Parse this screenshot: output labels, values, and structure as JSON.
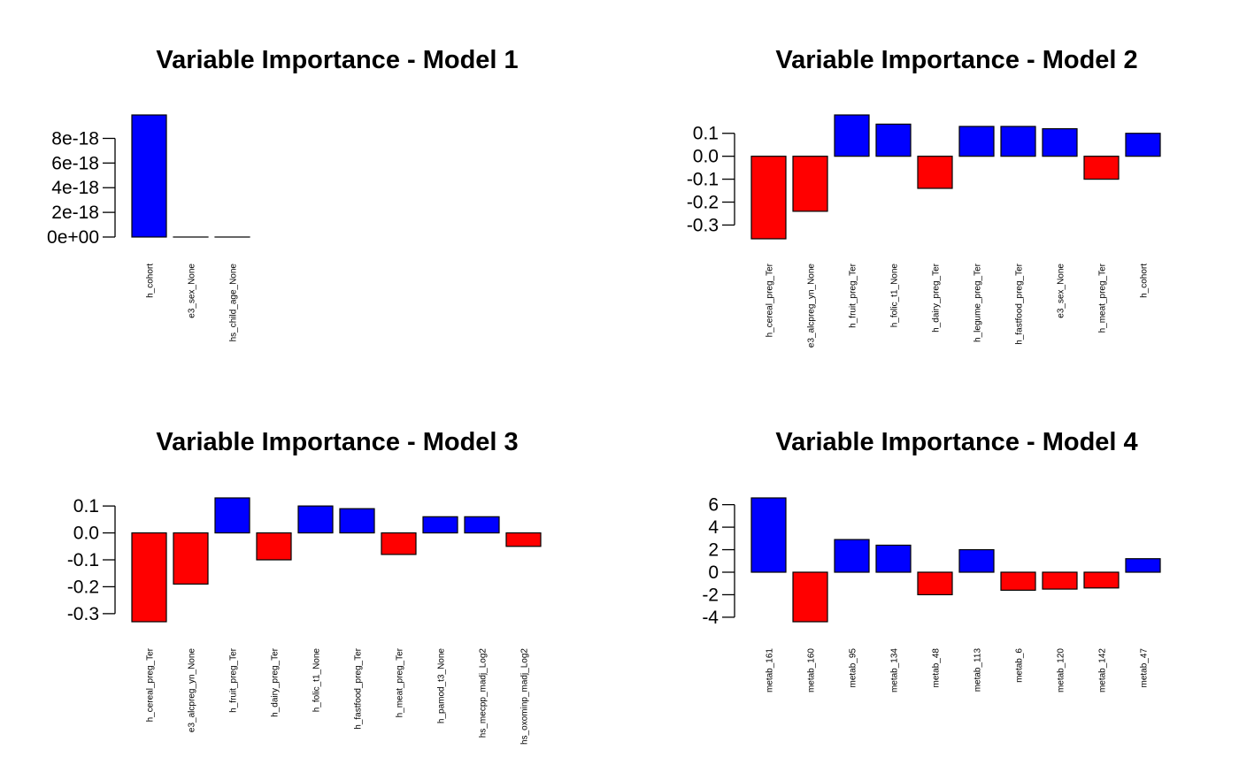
{
  "colors": {
    "positive": "#0000ff",
    "negative": "#ff0000",
    "outline": "#000000",
    "background": "#ffffff"
  },
  "chart_data": [
    {
      "type": "bar",
      "title": "Variable Importance - Model 1",
      "categories": [
        "h_cohort",
        "e3_sex_None",
        "hs_child_age_None"
      ],
      "values": [
        9.9e-18,
        0,
        0
      ],
      "ylim": [
        0,
        9.9e-18
      ],
      "yticks": [
        0,
        2e-18,
        4e-18,
        6e-18,
        8e-18
      ],
      "ytick_labels": [
        "0e+00",
        "2e-18",
        "4e-18",
        "6e-18",
        "8e-18"
      ],
      "xlabel": "",
      "ylabel": "",
      "grid": false
    },
    {
      "type": "bar",
      "title": "Variable Importance - Model 2",
      "categories": [
        "h_cereal_preg_Ter",
        "e3_alcpreg_yn_None",
        "h_fruit_preg_Ter",
        "h_folic_t1_None",
        "h_dairy_preg_Ter",
        "h_legume_preg_Ter",
        "h_fastfood_preg_Ter",
        "e3_sex_None",
        "h_meat_preg_Ter",
        "h_cohort"
      ],
      "values": [
        -0.36,
        -0.24,
        0.18,
        0.14,
        -0.14,
        0.13,
        0.13,
        0.12,
        -0.1,
        0.1
      ],
      "ylim": [
        -0.36,
        0.18
      ],
      "yticks": [
        -0.3,
        -0.2,
        -0.1,
        0.0,
        0.1
      ],
      "ytick_labels": [
        "-0.3",
        "-0.2",
        "-0.1",
        "0.0",
        "0.1"
      ],
      "xlabel": "",
      "ylabel": "",
      "grid": false
    },
    {
      "type": "bar",
      "title": "Variable Importance - Model 3",
      "categories": [
        "h_cereal_preg_Ter",
        "e3_alcpreg_yn_None",
        "h_fruit_preg_Ter",
        "h_dairy_preg_Ter",
        "h_folic_t1_None",
        "h_fastfood_preg_Ter",
        "h_meat_preg_Ter",
        "h_pamod_t3_None",
        "hs_mecpp_madj_Log2",
        "hs_oxominp_madj_Log2"
      ],
      "values": [
        -0.33,
        -0.19,
        0.13,
        -0.1,
        0.1,
        0.09,
        -0.08,
        0.06,
        0.06,
        -0.05
      ],
      "ylim": [
        -0.33,
        0.13
      ],
      "yticks": [
        -0.3,
        -0.2,
        -0.1,
        0.0,
        0.1
      ],
      "ytick_labels": [
        "-0.3",
        "-0.2",
        "-0.1",
        "0.0",
        "0.1"
      ],
      "xlabel": "",
      "ylabel": "",
      "grid": false
    },
    {
      "type": "bar",
      "title": "Variable Importance - Model 4",
      "categories": [
        "metab_161",
        "metab_160",
        "metab_95",
        "metab_134",
        "metab_48",
        "metab_113",
        "metab_6",
        "metab_120",
        "metab_142",
        "metab_47"
      ],
      "values": [
        6.6,
        -4.4,
        2.9,
        2.4,
        -2.0,
        2.0,
        -1.6,
        -1.5,
        -1.4,
        1.2
      ],
      "ylim": [
        -4.4,
        6.6
      ],
      "yticks": [
        -4,
        -2,
        0,
        2,
        4,
        6
      ],
      "ytick_labels": [
        "-4",
        "-2",
        "0",
        "2",
        "4",
        "6"
      ],
      "xlabel": "",
      "ylabel": "",
      "grid": false
    }
  ]
}
